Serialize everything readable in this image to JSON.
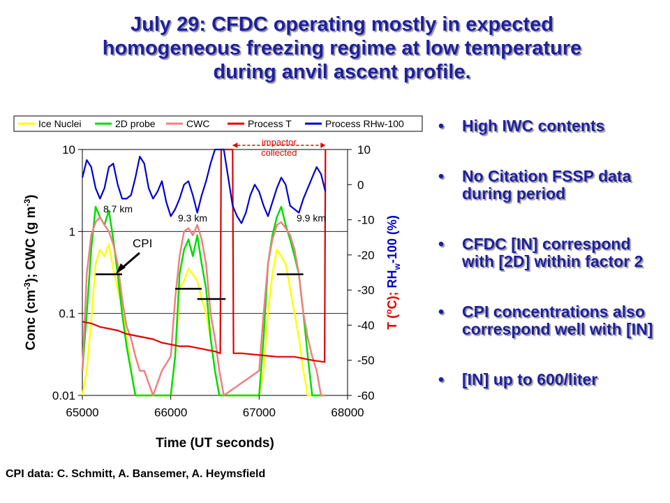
{
  "slide": {
    "title": "July 29: CFDC operating mostly in expected\nhomogeneous freezing regime at low temperature\nduring anvil ascent profile.",
    "bullets": [
      "High IWC contents",
      "No Citation FSSP data during period",
      "CFDC [IN] correspond with [2D] within factor 2",
      "CPI concentrations also correspond well with [IN]",
      "[IN] up to 600/liter"
    ],
    "bullet_symbol": "•",
    "credit": "CPI data: C. Schmitt, A. Bansemer, A. Heymsfield",
    "colors": {
      "title": "#1f1f9f"
    }
  },
  "chart_data": {
    "type": "line",
    "xlabel": "Time (UT seconds)",
    "ylabel_left": "Conc (cm-3); CWC (g m-3)",
    "ylabel_right": "T (°C); RHw-100 (%)",
    "xlim": [
      65000,
      68000
    ],
    "ylim_left": [
      0.01,
      10
    ],
    "left_scale": "log",
    "ylim_right": [
      -60,
      10
    ],
    "x_ticks": [
      "65000",
      "66000",
      "67000",
      "68000"
    ],
    "y_ticks_left": [
      "0.01",
      "0.1",
      "1",
      "10"
    ],
    "y_ticks_right": [
      "-60",
      "-50",
      "-40",
      "-30",
      "-20",
      "-10",
      "0",
      "10"
    ],
    "legend_position": "top",
    "annotations": {
      "alt1": "8.7 km",
      "alt2": "9.3 km",
      "alt3": "9.9 km",
      "cpi": "CPI",
      "impactor_line1": "impactor",
      "impactor_line2": "collected"
    },
    "impactor_window": [
      66700,
      67750
    ],
    "cpi_segments": [
      {
        "x": [
          65150,
          65450
        ],
        "y": 0.3
      },
      {
        "x": [
          66050,
          66350
        ],
        "y": 0.2
      },
      {
        "x": [
          66300,
          66620
        ],
        "y": 0.15
      },
      {
        "x": [
          67200,
          67500
        ],
        "y": 0.3
      }
    ],
    "series": [
      {
        "name": "Ice Nuclei",
        "color": "#ffff00",
        "axis": "left",
        "x": [
          65000,
          65050,
          65100,
          65150,
          65200,
          65250,
          65300,
          65350,
          65400,
          65450,
          65500,
          65550,
          65600,
          65650,
          65700,
          65750,
          65800,
          65850,
          65900,
          65950,
          66000,
          66050,
          66100,
          66150,
          66200,
          66250,
          66300,
          66350,
          66400,
          66450,
          66500,
          66550,
          66600,
          67000,
          67050,
          67100,
          67150,
          67200,
          67250,
          67300,
          67350,
          67400,
          67450,
          67500,
          67550,
          67600,
          67650,
          67700,
          67750
        ],
        "values": [
          0.01,
          0.02,
          0.08,
          0.4,
          0.6,
          0.5,
          0.7,
          0.35,
          0.2,
          0.12,
          0.05,
          0.02,
          0.01,
          0.01,
          0.01,
          0.01,
          0.01,
          0.01,
          0.01,
          0.01,
          0.01,
          0.03,
          0.2,
          0.25,
          0.35,
          0.3,
          0.25,
          0.15,
          0.1,
          0.05,
          0.02,
          0.01,
          0.01,
          0.01,
          0.02,
          0.1,
          0.3,
          0.6,
          0.5,
          0.4,
          0.2,
          0.1,
          0.05,
          0.02,
          0.01,
          0.01,
          0.01,
          0.01,
          0.01
        ]
      },
      {
        "name": "2D probe",
        "color": "#00dd00",
        "axis": "left",
        "x": [
          65000,
          65050,
          65100,
          65150,
          65200,
          65250,
          65300,
          65350,
          65400,
          65450,
          65500,
          65550,
          65600,
          66000,
          66050,
          66100,
          66150,
          66200,
          66250,
          66300,
          66350,
          66400,
          66450,
          66500,
          66550,
          66600,
          67000,
          67050,
          67100,
          67150,
          67200,
          67250,
          67300,
          67350,
          67400,
          67450,
          67500,
          67550,
          67600,
          67650,
          67700,
          67750
        ],
        "values": [
          0.02,
          0.1,
          0.6,
          2.0,
          1.5,
          1.2,
          1.8,
          0.8,
          0.3,
          0.1,
          0.04,
          0.02,
          0.01,
          0.01,
          0.03,
          0.3,
          0.6,
          0.8,
          0.5,
          0.9,
          0.4,
          0.2,
          0.05,
          0.02,
          0.01,
          0.01,
          0.01,
          0.05,
          0.4,
          0.9,
          1.5,
          2.0,
          1.2,
          0.8,
          0.5,
          0.3,
          0.1,
          0.03,
          0.01,
          0.01,
          0.01,
          0.01
        ]
      },
      {
        "name": "CWC",
        "color": "#f08080",
        "axis": "left",
        "x": [
          65000,
          65050,
          65100,
          65150,
          65200,
          65250,
          65300,
          65350,
          65400,
          65450,
          65500,
          65550,
          65600,
          65650,
          65700,
          65800,
          65900,
          66000,
          66050,
          66100,
          66150,
          66200,
          66250,
          66300,
          66350,
          66400,
          66450,
          66500,
          66550,
          66600,
          67000,
          67050,
          67100,
          67150,
          67200,
          67250,
          67300,
          67350,
          67400,
          67450,
          67500,
          67550,
          67600,
          67650,
          67700,
          67750
        ],
        "values": [
          0.02,
          0.3,
          0.9,
          1.3,
          1.5,
          1.2,
          1.0,
          0.7,
          0.4,
          0.15,
          0.07,
          0.05,
          0.03,
          0.02,
          0.02,
          0.01,
          0.02,
          0.03,
          0.15,
          0.5,
          1.0,
          1.1,
          0.9,
          1.2,
          0.8,
          0.4,
          0.1,
          0.05,
          0.02,
          0.01,
          0.02,
          0.1,
          0.4,
          0.8,
          1.2,
          1.3,
          1.1,
          0.9,
          0.6,
          0.3,
          0.1,
          0.05,
          0.03,
          0.02,
          0.01,
          0.01
        ]
      },
      {
        "name": "Process T",
        "color": "#e00000",
        "axis": "right",
        "x": [
          65000,
          65100,
          65200,
          65300,
          65400,
          65500,
          65600,
          65700,
          65800,
          65900,
          66000,
          66100,
          66200,
          66300,
          66400,
          66500,
          66560,
          66570,
          66700,
          66710,
          66800,
          67000,
          67200,
          67400,
          67600,
          67740,
          67750
        ],
        "values": [
          -39,
          -39.5,
          -40.5,
          -41,
          -41.5,
          -42.5,
          -43,
          -43.5,
          -44,
          -45,
          -45.5,
          -46,
          -46,
          -46.5,
          -47,
          -47.5,
          -48,
          10,
          10,
          -48,
          -48,
          -48.5,
          -49,
          -49,
          -50,
          -50.5,
          10
        ]
      },
      {
        "name": "Process RHw-100",
        "color": "#0000cc",
        "axis": "right",
        "x": [
          65000,
          65050,
          65100,
          65150,
          65200,
          65250,
          65300,
          65350,
          65400,
          65450,
          65500,
          65550,
          65600,
          65650,
          65700,
          65750,
          65800,
          65850,
          65900,
          65950,
          66000,
          66050,
          66100,
          66150,
          66200,
          66250,
          66300,
          66350,
          66400,
          66450,
          66500,
          66550,
          66600,
          66700,
          66750,
          66800,
          66850,
          66900,
          66950,
          67000,
          67050,
          67100,
          67150,
          67200,
          67250,
          67300,
          67350,
          67400,
          67450,
          67500,
          67550,
          67600,
          67650,
          67700,
          67750
        ],
        "values": [
          2,
          7,
          5,
          -1,
          -4,
          -1,
          5,
          6,
          0,
          -4,
          -4,
          -3,
          2,
          8,
          6,
          -1,
          -4,
          -2,
          1,
          -5,
          -9,
          -7,
          -4,
          0,
          1,
          -3,
          -8,
          -3,
          1,
          6,
          10,
          10,
          10,
          -6,
          -9,
          -11,
          -8,
          -3,
          0,
          -2,
          -6,
          -9,
          -5,
          -1,
          2,
          0,
          -6,
          -7,
          -8,
          -4,
          -1,
          2,
          5,
          3,
          -2
        ]
      }
    ]
  }
}
